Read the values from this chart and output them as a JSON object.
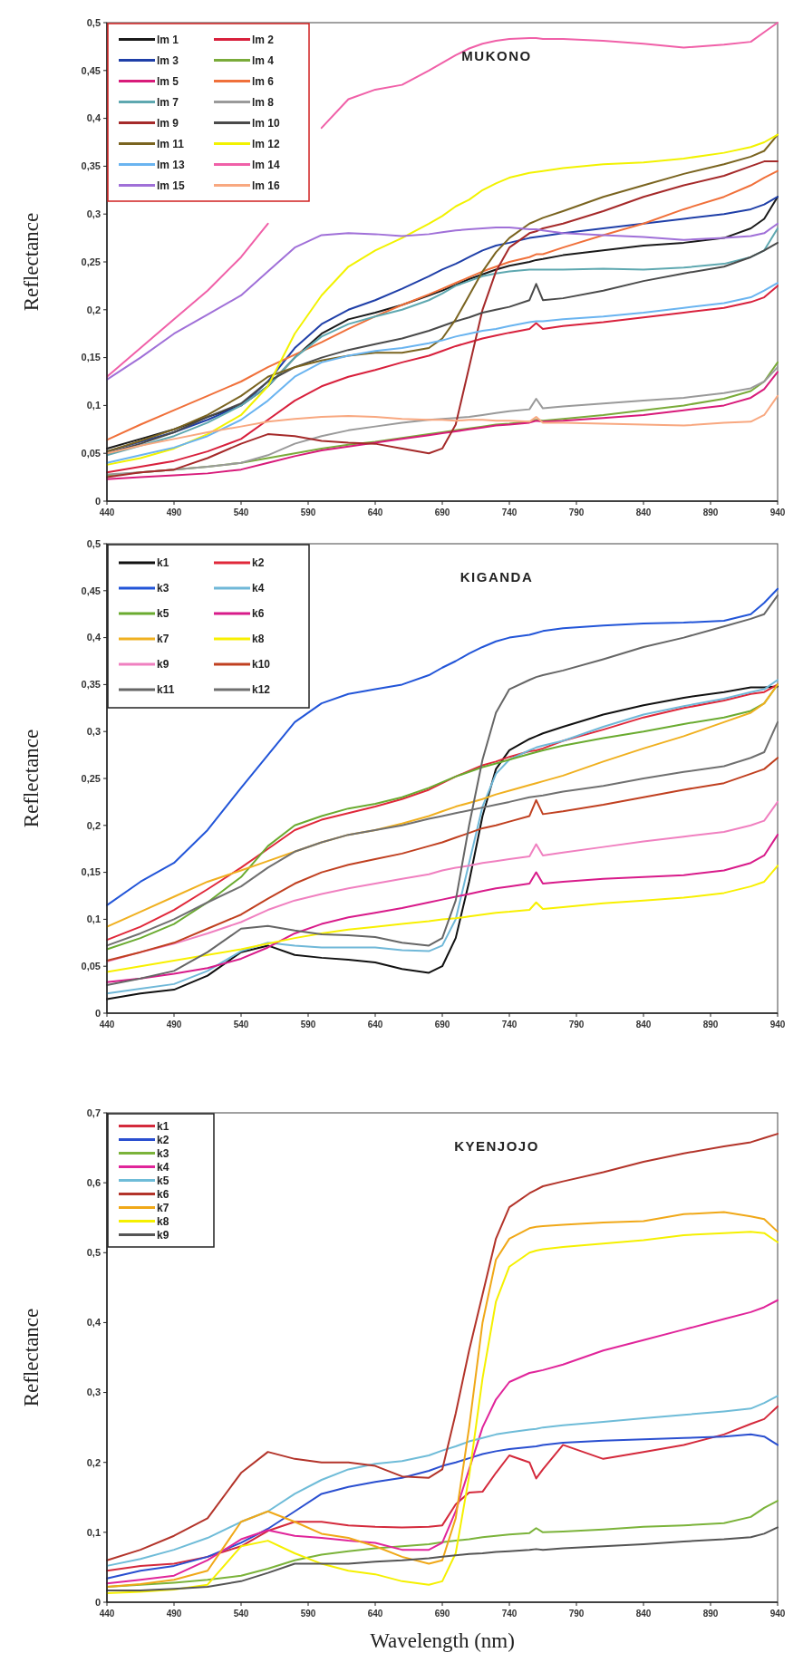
{
  "chart_data": [
    {
      "type": "line",
      "title": "MUKONO",
      "ylabel": "Reflectance",
      "legend": "top left",
      "x": [
        440,
        465,
        490,
        515,
        540,
        560,
        580,
        600,
        620,
        640,
        660,
        680,
        690,
        700,
        710,
        720,
        730,
        740,
        755,
        760,
        765,
        780,
        810,
        840,
        870,
        900,
        920,
        930,
        940
      ],
      "xlim": [
        440,
        940
      ],
      "xticks": [
        440,
        490,
        540,
        590,
        640,
        690,
        740,
        790,
        840,
        890,
        940
      ],
      "ylim": [
        0,
        0.5
      ],
      "yticks": [
        {
          "value": 0,
          "label": "0"
        },
        {
          "value": 0.05,
          "label": "0,05"
        },
        {
          "value": 0.1,
          "label": "0,1"
        },
        {
          "value": 0.15,
          "label": "0,15"
        },
        {
          "value": 0.2,
          "label": "0,2"
        },
        {
          "value": 0.25,
          "label": "0,25"
        },
        {
          "value": 0.3,
          "label": "0,3"
        },
        {
          "value": 0.35,
          "label": "0,35"
        },
        {
          "value": 0.4,
          "label": "0,4"
        },
        {
          "value": 0.45,
          "label": "0,45"
        },
        {
          "value": 0.5,
          "label": "0,5"
        }
      ],
      "series": [
        {
          "name": "lm 1",
          "color": "#1a1a1a",
          "values": [
            0.055,
            0.065,
            0.075,
            0.088,
            0.1,
            0.12,
            0.15,
            0.175,
            0.19,
            0.197,
            0.205,
            0.215,
            0.22,
            0.226,
            0.232,
            0.237,
            0.242,
            0.246,
            0.25,
            0.252,
            0.253,
            0.257,
            0.262,
            0.267,
            0.27,
            0.275,
            0.285,
            0.295,
            0.318
          ]
        },
        {
          "name": "lm 2",
          "color": "#d8203c",
          "values": [
            0.03,
            0.036,
            0.042,
            0.052,
            0.065,
            0.085,
            0.105,
            0.12,
            0.13,
            0.137,
            0.145,
            0.152,
            0.157,
            0.162,
            0.166,
            0.17,
            0.173,
            0.176,
            0.18,
            0.186,
            0.18,
            0.183,
            0.187,
            0.192,
            0.197,
            0.202,
            0.208,
            0.213,
            0.225
          ]
        },
        {
          "name": "lm 3",
          "color": "#1f3fa8",
          "values": [
            0.052,
            0.062,
            0.072,
            0.085,
            0.1,
            0.125,
            0.16,
            0.185,
            0.2,
            0.21,
            0.222,
            0.235,
            0.242,
            0.248,
            0.255,
            0.262,
            0.267,
            0.27,
            0.275,
            0.276,
            0.277,
            0.28,
            0.285,
            0.29,
            0.295,
            0.3,
            0.305,
            0.31,
            0.318
          ]
        },
        {
          "name": "lm 4",
          "color": "#7aab3a",
          "values": [
            0.027,
            0.03,
            0.033,
            0.036,
            0.04,
            0.045,
            0.05,
            0.055,
            0.059,
            0.062,
            0.066,
            0.07,
            0.072,
            0.074,
            0.076,
            0.078,
            0.08,
            0.081,
            0.083,
            0.085,
            0.084,
            0.086,
            0.09,
            0.095,
            0.1,
            0.107,
            0.115,
            0.125,
            0.145
          ]
        },
        {
          "name": "lm 5",
          "color": "#d81b7a",
          "values": [
            0.023,
            0.025,
            0.027,
            0.029,
            0.033,
            0.04,
            0.047,
            0.053,
            0.057,
            0.061,
            0.065,
            0.069,
            0.071,
            0.073,
            0.075,
            0.077,
            0.079,
            0.08,
            0.082,
            0.084,
            0.083,
            0.084,
            0.087,
            0.09,
            0.095,
            0.1,
            0.108,
            0.117,
            0.135
          ]
        },
        {
          "name": "lm 6",
          "color": "#f0703a",
          "values": [
            0.064,
            0.08,
            0.095,
            0.11,
            0.125,
            0.14,
            0.153,
            0.166,
            0.18,
            0.193,
            0.205,
            0.216,
            0.222,
            0.228,
            0.234,
            0.24,
            0.245,
            0.25,
            0.255,
            0.258,
            0.258,
            0.265,
            0.278,
            0.29,
            0.305,
            0.318,
            0.33,
            0.338,
            0.345
          ]
        },
        {
          "name": "lm 7",
          "color": "#5ea8b0",
          "values": [
            0.048,
            0.058,
            0.068,
            0.082,
            0.1,
            0.12,
            0.15,
            0.172,
            0.185,
            0.193,
            0.2,
            0.21,
            0.217,
            0.225,
            0.23,
            0.235,
            0.238,
            0.24,
            0.242,
            0.242,
            0.242,
            0.242,
            0.243,
            0.242,
            0.244,
            0.248,
            0.255,
            0.262,
            0.285
          ]
        },
        {
          "name": "lm 8",
          "color": "#9a9a9a",
          "values": [
            0.028,
            0.03,
            0.033,
            0.036,
            0.04,
            0.048,
            0.06,
            0.068,
            0.074,
            0.078,
            0.082,
            0.085,
            0.086,
            0.087,
            0.088,
            0.09,
            0.092,
            0.094,
            0.096,
            0.107,
            0.097,
            0.099,
            0.102,
            0.105,
            0.108,
            0.113,
            0.118,
            0.125,
            0.14
          ]
        },
        {
          "name": "lm 9",
          "color": "#a52a2a",
          "values": [
            0.025,
            0.03,
            0.033,
            0.045,
            0.06,
            0.07,
            0.068,
            0.063,
            0.061,
            0.06,
            0.055,
            0.05,
            0.055,
            0.08,
            0.14,
            0.2,
            0.24,
            0.265,
            0.28,
            0.282,
            0.285,
            0.29,
            0.303,
            0.318,
            0.33,
            0.34,
            0.35,
            0.355,
            0.355
          ]
        },
        {
          "name": "lm 10",
          "color": "#4a4a4a",
          "values": [
            0.05,
            0.06,
            0.072,
            0.088,
            0.102,
            0.125,
            0.14,
            0.15,
            0.158,
            0.164,
            0.17,
            0.178,
            0.183,
            0.188,
            0.192,
            0.197,
            0.2,
            0.203,
            0.21,
            0.227,
            0.21,
            0.212,
            0.22,
            0.23,
            0.238,
            0.245,
            0.255,
            0.262,
            0.27
          ]
        },
        {
          "name": "lm 11",
          "color": "#7a6420",
          "values": [
            0.052,
            0.063,
            0.075,
            0.09,
            0.11,
            0.13,
            0.14,
            0.147,
            0.152,
            0.155,
            0.155,
            0.16,
            0.17,
            0.19,
            0.215,
            0.24,
            0.26,
            0.275,
            0.29,
            0.293,
            0.296,
            0.303,
            0.318,
            0.33,
            0.342,
            0.352,
            0.36,
            0.366,
            0.383
          ]
        },
        {
          "name": "lm 12",
          "color": "#f2f200",
          "values": [
            0.038,
            0.045,
            0.055,
            0.07,
            0.09,
            0.12,
            0.175,
            0.215,
            0.245,
            0.262,
            0.275,
            0.29,
            0.298,
            0.308,
            0.315,
            0.325,
            0.332,
            0.338,
            0.343,
            0.344,
            0.345,
            0.348,
            0.352,
            0.354,
            0.358,
            0.364,
            0.37,
            0.375,
            0.383
          ]
        },
        {
          "name": "lm 13",
          "color": "#6ab4f0",
          "values": [
            0.04,
            0.048,
            0.056,
            0.068,
            0.085,
            0.105,
            0.13,
            0.145,
            0.152,
            0.157,
            0.16,
            0.165,
            0.168,
            0.172,
            0.175,
            0.178,
            0.18,
            0.183,
            0.187,
            0.188,
            0.188,
            0.19,
            0.193,
            0.197,
            0.202,
            0.207,
            0.213,
            0.22,
            0.228
          ]
        },
        {
          "name": "lm 14",
          "color": "#f060a8",
          "values": [
            0.13,
            0.16,
            0.19,
            0.22,
            0.255,
            0.29,
            null,
            0.39,
            0.42,
            0.43,
            0.435,
            0.45,
            0.458,
            0.466,
            0.473,
            0.478,
            0.481,
            0.483,
            0.484,
            0.484,
            0.483,
            0.483,
            0.481,
            0.478,
            0.474,
            0.477,
            0.48,
            0.49,
            0.5
          ]
        },
        {
          "name": "lm 15",
          "color": "#a070d8",
          "values": [
            0.127,
            0.15,
            0.175,
            0.195,
            0.215,
            0.24,
            0.265,
            0.278,
            0.28,
            0.279,
            0.277,
            0.279,
            0.281,
            0.283,
            0.284,
            0.285,
            0.286,
            0.286,
            0.284,
            0.284,
            0.283,
            0.28,
            0.278,
            0.276,
            0.273,
            0.275,
            0.277,
            0.28,
            0.29
          ]
        },
        {
          "name": "lm 16",
          "color": "#f8a880",
          "values": [
            0.05,
            0.058,
            0.065,
            0.072,
            0.078,
            0.083,
            0.086,
            0.088,
            0.089,
            0.088,
            0.086,
            0.085,
            0.085,
            0.084,
            0.085,
            0.085,
            0.084,
            0.084,
            0.083,
            0.088,
            0.082,
            0.082,
            0.081,
            0.08,
            0.079,
            0.082,
            0.083,
            0.09,
            0.11
          ]
        }
      ]
    },
    {
      "type": "line",
      "title": "KIGANDA",
      "ylabel": "Reflectance",
      "legend": "top left",
      "x": [
        440,
        465,
        490,
        515,
        540,
        560,
        580,
        600,
        620,
        640,
        660,
        680,
        690,
        700,
        710,
        720,
        730,
        740,
        755,
        760,
        765,
        780,
        810,
        840,
        870,
        900,
        920,
        930,
        940
      ],
      "xlim": [
        440,
        940
      ],
      "xticks": [
        440,
        490,
        540,
        590,
        640,
        690,
        740,
        790,
        840,
        890,
        940
      ],
      "ylim": [
        0,
        0.5
      ],
      "yticks": [
        {
          "value": 0,
          "label": "0"
        },
        {
          "value": 0.05,
          "label": "0,05"
        },
        {
          "value": 0.1,
          "label": "0,1"
        },
        {
          "value": 0.15,
          "label": "0,15"
        },
        {
          "value": 0.2,
          "label": "0,2"
        },
        {
          "value": 0.25,
          "label": "0,25"
        },
        {
          "value": 0.3,
          "label": "0,3"
        },
        {
          "value": 0.35,
          "label": "0,35"
        },
        {
          "value": 0.4,
          "label": "0,4"
        },
        {
          "value": 0.45,
          "label": "0,45"
        },
        {
          "value": 0.5,
          "label": "0,5"
        }
      ],
      "series": [
        {
          "name": "k1",
          "color": "#111111",
          "values": [
            0.015,
            0.021,
            0.025,
            0.04,
            0.065,
            0.072,
            0.062,
            0.059,
            0.057,
            0.054,
            0.047,
            0.043,
            0.05,
            0.08,
            0.14,
            0.21,
            0.26,
            0.28,
            0.292,
            0.295,
            0.298,
            0.305,
            0.318,
            0.328,
            0.336,
            0.342,
            0.347,
            0.347,
            0.348
          ]
        },
        {
          "name": "k2",
          "color": "#e0283a",
          "values": [
            0.078,
            0.092,
            0.11,
            0.132,
            0.155,
            0.175,
            0.195,
            0.206,
            0.213,
            0.22,
            0.228,
            0.238,
            0.245,
            0.252,
            0.258,
            0.264,
            0.268,
            0.273,
            0.279,
            0.28,
            0.282,
            0.29,
            0.302,
            0.315,
            0.325,
            0.333,
            0.34,
            0.342,
            0.35
          ]
        },
        {
          "name": "k3",
          "color": "#2255d8",
          "values": [
            0.115,
            0.14,
            0.16,
            0.195,
            0.24,
            0.275,
            0.31,
            0.33,
            0.34,
            0.345,
            0.35,
            0.36,
            0.368,
            0.375,
            0.383,
            0.39,
            0.396,
            0.4,
            0.403,
            0.405,
            0.407,
            0.41,
            0.413,
            0.415,
            0.416,
            0.418,
            0.425,
            0.437,
            0.452
          ]
        },
        {
          "name": "k4",
          "color": "#70b8d8",
          "values": [
            0.021,
            0.026,
            0.031,
            0.045,
            0.066,
            0.075,
            0.072,
            0.07,
            0.07,
            0.07,
            0.067,
            0.066,
            0.072,
            0.1,
            0.16,
            0.22,
            0.255,
            0.27,
            0.28,
            0.283,
            0.285,
            0.29,
            0.305,
            0.318,
            0.327,
            0.335,
            0.342,
            0.345,
            0.355
          ]
        },
        {
          "name": "k5",
          "color": "#6aab30",
          "values": [
            0.068,
            0.08,
            0.095,
            0.118,
            0.145,
            0.178,
            0.2,
            0.21,
            0.218,
            0.223,
            0.23,
            0.24,
            0.246,
            0.252,
            0.257,
            0.262,
            0.266,
            0.27,
            0.276,
            0.278,
            0.28,
            0.285,
            0.293,
            0.3,
            0.308,
            0.315,
            0.322,
            0.33,
            0.35
          ]
        },
        {
          "name": "k6",
          "color": "#d81b8a",
          "values": [
            0.033,
            0.037,
            0.042,
            0.048,
            0.058,
            0.07,
            0.085,
            0.095,
            0.102,
            0.107,
            0.112,
            0.118,
            0.121,
            0.124,
            0.127,
            0.13,
            0.133,
            0.135,
            0.138,
            0.15,
            0.138,
            0.14,
            0.143,
            0.145,
            0.147,
            0.152,
            0.16,
            0.168,
            0.19
          ]
        },
        {
          "name": "k7",
          "color": "#f0b020",
          "values": [
            0.092,
            0.108,
            0.124,
            0.14,
            0.152,
            0.162,
            0.172,
            0.182,
            0.19,
            0.195,
            0.202,
            0.21,
            0.215,
            0.22,
            0.224,
            0.228,
            0.233,
            0.237,
            0.243,
            0.245,
            0.247,
            0.253,
            0.268,
            0.282,
            0.295,
            0.31,
            0.32,
            0.33,
            0.35
          ]
        },
        {
          "name": "k8",
          "color": "#f8f000",
          "values": [
            0.044,
            0.05,
            0.056,
            0.062,
            0.068,
            0.074,
            0.08,
            0.085,
            0.089,
            0.092,
            0.095,
            0.098,
            0.1,
            0.101,
            0.103,
            0.105,
            0.107,
            0.108,
            0.11,
            0.118,
            0.111,
            0.113,
            0.117,
            0.12,
            0.123,
            0.128,
            0.135,
            0.14,
            0.157
          ]
        },
        {
          "name": "k9",
          "color": "#f080c0",
          "values": [
            0.055,
            0.065,
            0.074,
            0.085,
            0.097,
            0.11,
            0.12,
            0.127,
            0.133,
            0.138,
            0.143,
            0.148,
            0.152,
            0.155,
            0.157,
            0.16,
            0.162,
            0.164,
            0.167,
            0.18,
            0.168,
            0.171,
            0.177,
            0.183,
            0.188,
            0.193,
            0.2,
            0.205,
            0.225
          ]
        },
        {
          "name": "k10",
          "color": "#c04020",
          "values": [
            0.056,
            0.065,
            0.075,
            0.09,
            0.105,
            0.122,
            0.138,
            0.15,
            0.158,
            0.164,
            0.17,
            0.178,
            0.182,
            0.187,
            0.192,
            0.197,
            0.2,
            0.204,
            0.21,
            0.227,
            0.212,
            0.215,
            0.222,
            0.23,
            0.238,
            0.245,
            0.255,
            0.26,
            0.272
          ]
        },
        {
          "name": "k11",
          "color": "#666666",
          "values": [
            0.03,
            0.037,
            0.045,
            0.065,
            0.09,
            0.093,
            0.088,
            0.084,
            0.083,
            0.081,
            0.075,
            0.072,
            0.08,
            0.12,
            0.2,
            0.27,
            0.32,
            0.345,
            0.355,
            0.358,
            0.36,
            0.365,
            0.377,
            0.39,
            0.4,
            0.412,
            0.42,
            0.425,
            0.445
          ]
        },
        {
          "name": "k12",
          "color": "#707070",
          "values": [
            0.072,
            0.085,
            0.1,
            0.118,
            0.135,
            0.155,
            0.172,
            0.182,
            0.19,
            0.195,
            0.2,
            0.207,
            0.21,
            0.213,
            0.216,
            0.219,
            0.222,
            0.225,
            0.23,
            0.231,
            0.232,
            0.236,
            0.242,
            0.25,
            0.257,
            0.263,
            0.272,
            0.278,
            0.31
          ]
        }
      ]
    },
    {
      "type": "line",
      "title": "KYENJOJO",
      "ylabel": "Reflectance",
      "xlabel": "Wavelength (nm)",
      "legend": "top left",
      "x": [
        440,
        465,
        490,
        515,
        540,
        560,
        580,
        600,
        620,
        640,
        660,
        680,
        690,
        700,
        710,
        720,
        730,
        740,
        755,
        760,
        765,
        780,
        810,
        840,
        870,
        900,
        920,
        930,
        940
      ],
      "xlim": [
        440,
        940
      ],
      "xticks": [
        440,
        490,
        540,
        590,
        640,
        690,
        740,
        790,
        840,
        890,
        940
      ],
      "ylim": [
        0,
        0.7
      ],
      "yticks": [
        {
          "value": 0,
          "label": "0"
        },
        {
          "value": 0.1,
          "label": "0,1"
        },
        {
          "value": 0.2,
          "label": "0,2"
        },
        {
          "value": 0.3,
          "label": "0,3"
        },
        {
          "value": 0.4,
          "label": "0,4"
        },
        {
          "value": 0.5,
          "label": "0,5"
        },
        {
          "value": 0.6,
          "label": "0,6"
        },
        {
          "value": 0.7,
          "label": "0,7"
        }
      ],
      "series": [
        {
          "name": "k1",
          "color": "#d42a3c",
          "values": [
            0.045,
            0.052,
            0.055,
            0.065,
            0.08,
            0.102,
            0.115,
            0.115,
            0.11,
            0.108,
            0.107,
            0.108,
            0.11,
            0.14,
            0.157,
            0.158,
            0.185,
            0.21,
            0.2,
            0.177,
            0.19,
            0.225,
            0.205,
            0.215,
            0.225,
            0.24,
            0.255,
            0.262,
            0.28
          ]
        },
        {
          "name": "k2",
          "color": "#2a4fd0",
          "values": [
            0.034,
            0.045,
            0.052,
            0.065,
            0.085,
            0.105,
            0.13,
            0.155,
            0.165,
            0.172,
            0.178,
            0.188,
            0.195,
            0.2,
            0.206,
            0.212,
            0.216,
            0.219,
            0.222,
            0.223,
            0.225,
            0.228,
            0.231,
            0.233,
            0.235,
            0.237,
            0.24,
            0.237,
            0.225
          ]
        },
        {
          "name": "k3",
          "color": "#7bb33a",
          "values": [
            0.022,
            0.025,
            0.028,
            0.032,
            0.038,
            0.048,
            0.06,
            0.068,
            0.073,
            0.077,
            0.08,
            0.083,
            0.086,
            0.088,
            0.09,
            0.093,
            0.095,
            0.097,
            0.099,
            0.106,
            0.1,
            0.101,
            0.104,
            0.108,
            0.11,
            0.113,
            0.122,
            0.135,
            0.145
          ]
        },
        {
          "name": "k4",
          "color": "#e0259a",
          "values": [
            0.027,
            0.032,
            0.038,
            0.06,
            0.09,
            0.103,
            0.095,
            0.092,
            0.088,
            0.085,
            0.075,
            0.075,
            0.085,
            0.13,
            0.19,
            0.25,
            0.29,
            0.315,
            0.328,
            0.33,
            0.332,
            0.34,
            0.36,
            0.375,
            0.39,
            0.405,
            0.415,
            0.422,
            0.432
          ]
        },
        {
          "name": "k5",
          "color": "#6fbcd8",
          "values": [
            0.052,
            0.062,
            0.075,
            0.092,
            0.115,
            0.13,
            0.155,
            0.175,
            0.19,
            0.198,
            0.202,
            0.21,
            0.217,
            0.223,
            0.23,
            0.235,
            0.24,
            0.243,
            0.247,
            0.248,
            0.25,
            0.253,
            0.258,
            0.263,
            0.268,
            0.273,
            0.277,
            0.285,
            0.295
          ]
        },
        {
          "name": "k6",
          "color": "#b3342a",
          "values": [
            0.06,
            0.075,
            0.095,
            0.12,
            0.185,
            0.215,
            0.205,
            0.2,
            0.2,
            0.195,
            0.18,
            0.178,
            0.19,
            0.27,
            0.36,
            0.44,
            0.52,
            0.565,
            0.585,
            0.59,
            0.595,
            0.602,
            0.615,
            0.63,
            0.642,
            0.652,
            0.658,
            0.664,
            0.67
          ]
        },
        {
          "name": "k7",
          "color": "#f0a818",
          "values": [
            0.022,
            0.026,
            0.032,
            0.045,
            0.115,
            0.13,
            0.115,
            0.098,
            0.092,
            0.08,
            0.065,
            0.055,
            0.06,
            0.12,
            0.25,
            0.4,
            0.49,
            0.52,
            0.535,
            0.537,
            0.538,
            0.54,
            0.543,
            0.545,
            0.555,
            0.558,
            0.552,
            0.548,
            0.53
          ]
        },
        {
          "name": "k8",
          "color": "#f5f000",
          "values": [
            0.013,
            0.015,
            0.018,
            0.025,
            0.08,
            0.088,
            0.07,
            0.055,
            0.045,
            0.04,
            0.03,
            0.025,
            0.03,
            0.07,
            0.18,
            0.32,
            0.43,
            0.48,
            0.5,
            0.503,
            0.505,
            0.508,
            0.513,
            0.518,
            0.525,
            0.528,
            0.53,
            0.528,
            0.515
          ]
        },
        {
          "name": "k9",
          "color": "#555555",
          "values": [
            0.017,
            0.017,
            0.019,
            0.022,
            0.03,
            0.042,
            0.055,
            0.055,
            0.055,
            0.058,
            0.06,
            0.063,
            0.065,
            0.067,
            0.069,
            0.07,
            0.072,
            0.073,
            0.075,
            0.076,
            0.075,
            0.077,
            0.08,
            0.083,
            0.087,
            0.09,
            0.093,
            0.098,
            0.107
          ]
        }
      ]
    }
  ]
}
